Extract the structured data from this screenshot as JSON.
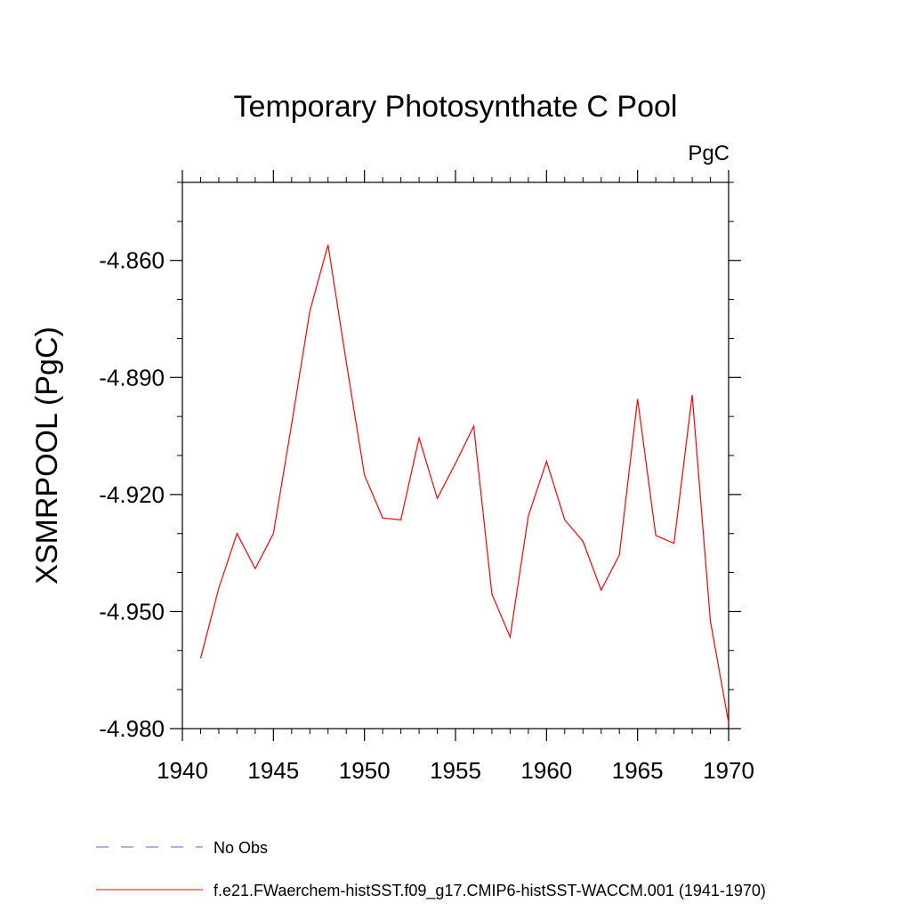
{
  "chart_data": {
    "type": "line",
    "title": "Temporary Photosynthate C Pool",
    "units_label": "PgC",
    "ylabel": "XSMRPOOL  (PgC)",
    "xlabel": "",
    "xlim": [
      1940,
      1970
    ],
    "ylim": [
      -4.98,
      -4.84
    ],
    "x_ticks": [
      1940,
      1945,
      1950,
      1955,
      1960,
      1965,
      1970
    ],
    "x_tick_labels": [
      "1940",
      "1945",
      "1950",
      "1955",
      "1960",
      "1965",
      "1970"
    ],
    "y_ticks": [
      -4.86,
      -4.89,
      -4.92,
      -4.95,
      -4.98
    ],
    "y_tick_labels": [
      "-4.860",
      "-4.890",
      "-4.920",
      "-4.950",
      "-4.980"
    ],
    "grid": false,
    "legend_position": "bottom",
    "series": [
      {
        "name": "No Obs",
        "color": "#6a5acd",
        "dash": "dashed",
        "x": [],
        "values": []
      },
      {
        "name": "f.e21.FWaerchem-histSST.f09_g17.CMIP6-histSST-WACCM.001 (1941-1970)",
        "color": "#ff0000",
        "dash": "solid",
        "x": [
          1941,
          1942,
          1943,
          1944,
          1945,
          1946,
          1947,
          1948,
          1949,
          1950,
          1951,
          1952,
          1953,
          1954,
          1955,
          1956,
          1957,
          1958,
          1959,
          1960,
          1961,
          1962,
          1963,
          1964,
          1965,
          1966,
          1967,
          1968,
          1969,
          1970
        ],
        "values": [
          -4.962,
          -4.944,
          -4.93,
          -4.939,
          -4.93,
          -4.902,
          -4.873,
          -4.856,
          -4.886,
          -4.915,
          -4.926,
          -4.9265,
          -4.9055,
          -4.921,
          -4.912,
          -4.9025,
          -4.9455,
          -4.9565,
          -4.9255,
          -4.9115,
          -4.9265,
          -4.932,
          -4.9445,
          -4.9355,
          -4.8955,
          -4.9305,
          -4.9325,
          -4.8945,
          -4.9525,
          -4.9785
        ]
      }
    ]
  }
}
